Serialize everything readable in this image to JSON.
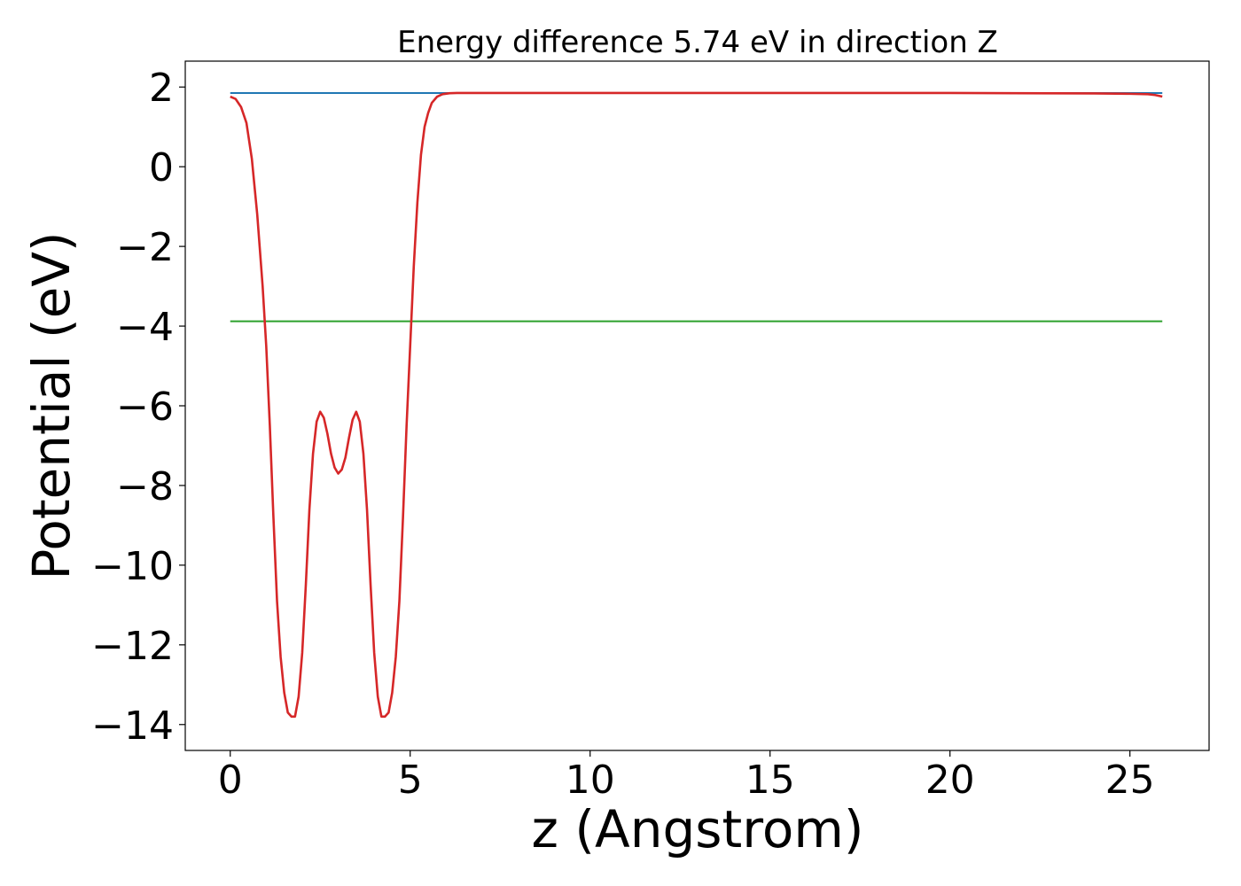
{
  "chart_data": {
    "type": "line",
    "title": "Energy difference 5.74 eV in direction Z",
    "xlabel": "z (Angstrom)",
    "ylabel": "Potential (eV)",
    "xlim": [
      -1.25,
      27.2
    ],
    "ylim": [
      -14.65,
      2.65
    ],
    "xticks": [
      0,
      5,
      10,
      15,
      20,
      25
    ],
    "yticks": [
      2,
      0,
      -2,
      -4,
      -6,
      -8,
      -10,
      -12,
      -14
    ],
    "xtick_labels": [
      "0",
      "5",
      "10",
      "15",
      "20",
      "25"
    ],
    "ytick_labels": [
      "2",
      "0",
      "−2",
      "−4",
      "−6",
      "−8",
      "−10",
      "−12",
      "−14"
    ],
    "grid": false,
    "legend": "none",
    "series": [
      {
        "color": "#1f77b4",
        "x": [
          0,
          25.9
        ],
        "y": [
          1.85,
          1.85
        ]
      },
      {
        "color": "#2ca02c",
        "x": [
          0,
          25.9
        ],
        "y": [
          -3.88,
          -3.88
        ]
      },
      {
        "color": "#d62728",
        "x": [
          0,
          0.15,
          0.3,
          0.45,
          0.6,
          0.75,
          0.9,
          1.0,
          1.1,
          1.2,
          1.3,
          1.4,
          1.5,
          1.6,
          1.7,
          1.8,
          1.9,
          2.0,
          2.1,
          2.2,
          2.3,
          2.4,
          2.5,
          2.6,
          2.7,
          2.8,
          2.9,
          3.0,
          3.1,
          3.2,
          3.3,
          3.4,
          3.5,
          3.6,
          3.7,
          3.8,
          3.9,
          4.0,
          4.1,
          4.2,
          4.3,
          4.4,
          4.5,
          4.6,
          4.7,
          4.8,
          4.9,
          5.0,
          5.1,
          5.2,
          5.3,
          5.4,
          5.5,
          5.6,
          5.75,
          5.9,
          6.1,
          6.3,
          6.6,
          7.0,
          7.5,
          8.0,
          10.0,
          15.0,
          20.0,
          24.0,
          25.0,
          25.5,
          25.7,
          25.9
        ],
        "y": [
          1.76,
          1.7,
          1.5,
          1.1,
          0.2,
          -1.2,
          -3.0,
          -4.5,
          -6.5,
          -8.8,
          -10.9,
          -12.3,
          -13.2,
          -13.7,
          -13.8,
          -13.8,
          -13.3,
          -12.2,
          -10.5,
          -8.6,
          -7.2,
          -6.4,
          -6.15,
          -6.3,
          -6.7,
          -7.2,
          -7.55,
          -7.7,
          -7.6,
          -7.3,
          -6.8,
          -6.35,
          -6.15,
          -6.4,
          -7.2,
          -8.6,
          -10.5,
          -12.2,
          -13.3,
          -13.8,
          -13.8,
          -13.7,
          -13.2,
          -12.3,
          -10.9,
          -8.8,
          -6.5,
          -4.5,
          -2.5,
          -0.9,
          0.3,
          1.0,
          1.35,
          1.6,
          1.76,
          1.82,
          1.845,
          1.85,
          1.85,
          1.85,
          1.85,
          1.85,
          1.85,
          1.85,
          1.85,
          1.84,
          1.83,
          1.82,
          1.8,
          1.76
        ]
      }
    ]
  }
}
